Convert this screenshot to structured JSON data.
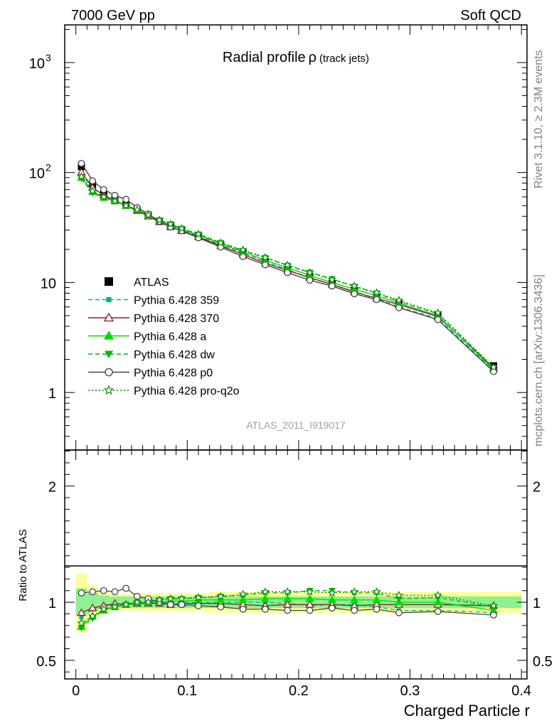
{
  "header": {
    "left_label": "7000 GeV pp",
    "right_label": "Soft QCD"
  },
  "side_labels": {
    "top": "Rivet 3.1.10, ≥ 2.3M events",
    "bottom": "mcplots.cern.ch [arXiv:1306.3436]"
  },
  "chart_data": [
    {
      "type": "line",
      "panel": "main",
      "title": "Radial profile",
      "title_symbol": "ρ",
      "title_suffix": "(track jets)",
      "analysis_id": "ATLAS_2011_I919017",
      "xlabel": "Charged Particle r",
      "ylabel": "",
      "y_scale": "log",
      "xlim": [
        -0.01,
        0.405
      ],
      "ylim": [
        0.3,
        2200
      ],
      "y_ticks": [
        {
          "value": 1,
          "label": "1"
        },
        {
          "value": 10,
          "label": "10"
        },
        {
          "value": 100,
          "label": "10",
          "sup": "2"
        },
        {
          "value": 1000,
          "label": "10",
          "sup": "3"
        }
      ],
      "x_ticks": [
        {
          "value": 0,
          "label": "0"
        },
        {
          "value": 0.1,
          "label": "0.1"
        },
        {
          "value": 0.2,
          "label": "0.2"
        },
        {
          "value": 0.3,
          "label": "0.3"
        },
        {
          "value": 0.4,
          "label": "0.4"
        }
      ],
      "x": [
        0.005,
        0.015,
        0.025,
        0.035,
        0.045,
        0.055,
        0.065,
        0.075,
        0.085,
        0.095,
        0.11,
        0.13,
        0.15,
        0.17,
        0.19,
        0.21,
        0.23,
        0.25,
        0.27,
        0.29,
        0.325,
        0.375
      ],
      "series": [
        {
          "name": "ATLAS",
          "color": "#000000",
          "marker": "square",
          "line": "none",
          "values": [
            113,
            77,
            64,
            57,
            51,
            46,
            41,
            36,
            33,
            30,
            26.5,
            22,
            18.5,
            15.5,
            13.2,
            11.3,
            9.8,
            8.5,
            7.4,
            6.5,
            5.0,
            1.75
          ]
        },
        {
          "name": "Pythia 6.428 359",
          "color": "#00b090",
          "marker": "square-small",
          "line": "dashed",
          "values": [
            98,
            72,
            62,
            56,
            50,
            46,
            41,
            36,
            33,
            30,
            26.5,
            22,
            18.5,
            15.5,
            13.1,
            11.0,
            9.6,
            8.3,
            7.1,
            6.0,
            4.7,
            1.6
          ]
        },
        {
          "name": "Pythia 6.428 370",
          "color": "#8b1a2b",
          "marker": "triangle-open",
          "line": "solid",
          "values": [
            101,
            73,
            62,
            56,
            50,
            45,
            40,
            35.5,
            32,
            29.5,
            26,
            21.5,
            18,
            15,
            12.9,
            11.1,
            9.6,
            8.2,
            7.2,
            6.3,
            4.9,
            1.67
          ]
        },
        {
          "name": "Pythia 6.428 a",
          "color": "#00dd00",
          "marker": "triangle-filled",
          "line": "solid",
          "values": [
            90,
            67,
            59,
            55,
            50,
            46,
            41,
            36.5,
            33.5,
            30.5,
            27,
            22.5,
            19,
            16,
            13.6,
            11.6,
            10.0,
            8.7,
            7.6,
            6.5,
            5.0,
            1.62
          ]
        },
        {
          "name": "Pythia 6.428 dw",
          "color": "#00b800",
          "marker": "triangle-down-filled",
          "line": "dashed",
          "values": [
            88,
            65,
            59,
            55,
            50,
            46,
            41,
            37,
            34,
            31,
            27.5,
            23,
            19.5,
            16.8,
            14.3,
            12.4,
            10.8,
            9.2,
            8.0,
            6.7,
            5.2,
            1.68
          ]
        },
        {
          "name": "Pythia 6.428 p0",
          "color": "#444444",
          "marker": "circle-open",
          "line": "solid",
          "values": [
            121,
            84,
            70,
            62,
            57,
            48,
            42,
            36,
            32,
            29.5,
            25.5,
            21,
            17.2,
            14.5,
            12.3,
            10.5,
            9.3,
            7.9,
            7.0,
            5.9,
            4.6,
            1.55
          ]
        },
        {
          "name": "Pythia 6.428 pro-q2o",
          "color": "#008800",
          "marker": "star-open",
          "line": "dotted",
          "values": [
            92,
            68,
            60,
            55,
            50,
            46,
            41,
            37,
            34,
            31,
            27.5,
            23,
            19.8,
            16.9,
            14.4,
            12.3,
            10.6,
            9.3,
            8.1,
            6.9,
            5.3,
            1.7
          ]
        }
      ]
    },
    {
      "type": "line",
      "panel": "ratio",
      "xlabel": "Charged Particle r",
      "ylabel": "Ratio to ATLAS",
      "xlim": [
        -0.01,
        0.405
      ],
      "ylim": [
        0.34,
        2.31
      ],
      "y_ticks": [
        {
          "value": 0.5,
          "label": "0.5"
        },
        {
          "value": 1,
          "label": "1"
        },
        {
          "value": 2,
          "label": "2"
        }
      ],
      "x_bins": [
        [
          0.0,
          0.01
        ],
        [
          0.01,
          0.02
        ],
        [
          0.02,
          0.03
        ],
        [
          0.03,
          0.04
        ],
        [
          0.04,
          0.05
        ],
        [
          0.05,
          0.06
        ],
        [
          0.06,
          0.07
        ],
        [
          0.07,
          0.08
        ],
        [
          0.08,
          0.09
        ],
        [
          0.09,
          0.1
        ],
        [
          0.1,
          0.12
        ],
        [
          0.12,
          0.14
        ],
        [
          0.14,
          0.16
        ],
        [
          0.16,
          0.18
        ],
        [
          0.18,
          0.2
        ],
        [
          0.2,
          0.22
        ],
        [
          0.22,
          0.24
        ],
        [
          0.24,
          0.26
        ],
        [
          0.26,
          0.28
        ],
        [
          0.28,
          0.3
        ],
        [
          0.3,
          0.35
        ],
        [
          0.35,
          0.4
        ]
      ],
      "band_inner": [
        0.12,
        0.08,
        0.06,
        0.05,
        0.05,
        0.05,
        0.05,
        0.05,
        0.05,
        0.05,
        0.05,
        0.05,
        0.05,
        0.05,
        0.05,
        0.05,
        0.05,
        0.05,
        0.05,
        0.05,
        0.05,
        0.05
      ],
      "band_outer": [
        0.25,
        0.14,
        0.09,
        0.07,
        0.07,
        0.08,
        0.08,
        0.08,
        0.08,
        0.08,
        0.08,
        0.09,
        0.09,
        0.09,
        0.09,
        0.09,
        0.09,
        0.09,
        0.09,
        0.09,
        0.09,
        0.09
      ],
      "x": [
        0.005,
        0.015,
        0.025,
        0.035,
        0.045,
        0.055,
        0.065,
        0.075,
        0.085,
        0.095,
        0.11,
        0.13,
        0.15,
        0.17,
        0.19,
        0.21,
        0.23,
        0.25,
        0.27,
        0.29,
        0.325,
        0.375
      ],
      "series": [
        {
          "name": "Pythia 6.428 359",
          "color": "#00b090",
          "marker": "square-small",
          "line": "dashed",
          "values": [
            0.87,
            0.94,
            0.97,
            0.98,
            0.98,
            1.0,
            1.0,
            1.0,
            1.0,
            1.0,
            1.0,
            1.0,
            1.0,
            1.0,
            0.99,
            0.97,
            0.98,
            0.98,
            0.96,
            0.93,
            0.93,
            0.91
          ]
        },
        {
          "name": "Pythia 6.428 370",
          "color": "#8b1a2b",
          "marker": "triangle-open",
          "line": "solid",
          "values": [
            0.91,
            0.95,
            0.97,
            0.99,
            0.98,
            0.99,
            0.99,
            0.99,
            0.98,
            0.99,
            0.99,
            0.99,
            0.98,
            0.97,
            0.98,
            0.98,
            0.98,
            0.97,
            0.98,
            0.98,
            0.98,
            0.97
          ]
        },
        {
          "name": "Pythia 6.428 a",
          "color": "#00dd00",
          "marker": "triangle-filled",
          "line": "solid",
          "values": [
            0.79,
            0.88,
            0.93,
            0.96,
            0.98,
            1.0,
            1.0,
            1.0,
            1.01,
            1.01,
            1.02,
            1.02,
            1.02,
            1.03,
            1.03,
            1.03,
            1.02,
            1.02,
            1.02,
            1.0,
            1.0,
            0.93
          ]
        },
        {
          "name": "Pythia 6.428 dw",
          "color": "#00b800",
          "marker": "triangle-down-filled",
          "line": "dashed",
          "values": [
            0.78,
            0.86,
            0.93,
            0.96,
            0.98,
            1.0,
            1.0,
            1.02,
            1.03,
            1.03,
            1.04,
            1.05,
            1.06,
            1.08,
            1.08,
            1.1,
            1.1,
            1.08,
            1.08,
            1.03,
            1.04,
            0.96
          ]
        },
        {
          "name": "Pythia 6.428 p0",
          "color": "#444444",
          "marker": "circle-open",
          "line": "solid",
          "values": [
            1.08,
            1.09,
            1.1,
            1.09,
            1.12,
            1.05,
            1.03,
            1.0,
            0.98,
            0.98,
            0.97,
            0.96,
            0.94,
            0.94,
            0.93,
            0.93,
            0.95,
            0.93,
            0.94,
            0.91,
            0.92,
            0.89
          ]
        },
        {
          "name": "Pythia 6.428 pro-q2o",
          "color": "#008800",
          "marker": "star-open",
          "line": "dotted",
          "values": [
            0.82,
            0.88,
            0.94,
            0.96,
            0.98,
            1.0,
            1.0,
            1.02,
            1.03,
            1.03,
            1.04,
            1.05,
            1.07,
            1.09,
            1.09,
            1.09,
            1.08,
            1.09,
            1.09,
            1.06,
            1.06,
            0.97
          ]
        }
      ]
    }
  ]
}
